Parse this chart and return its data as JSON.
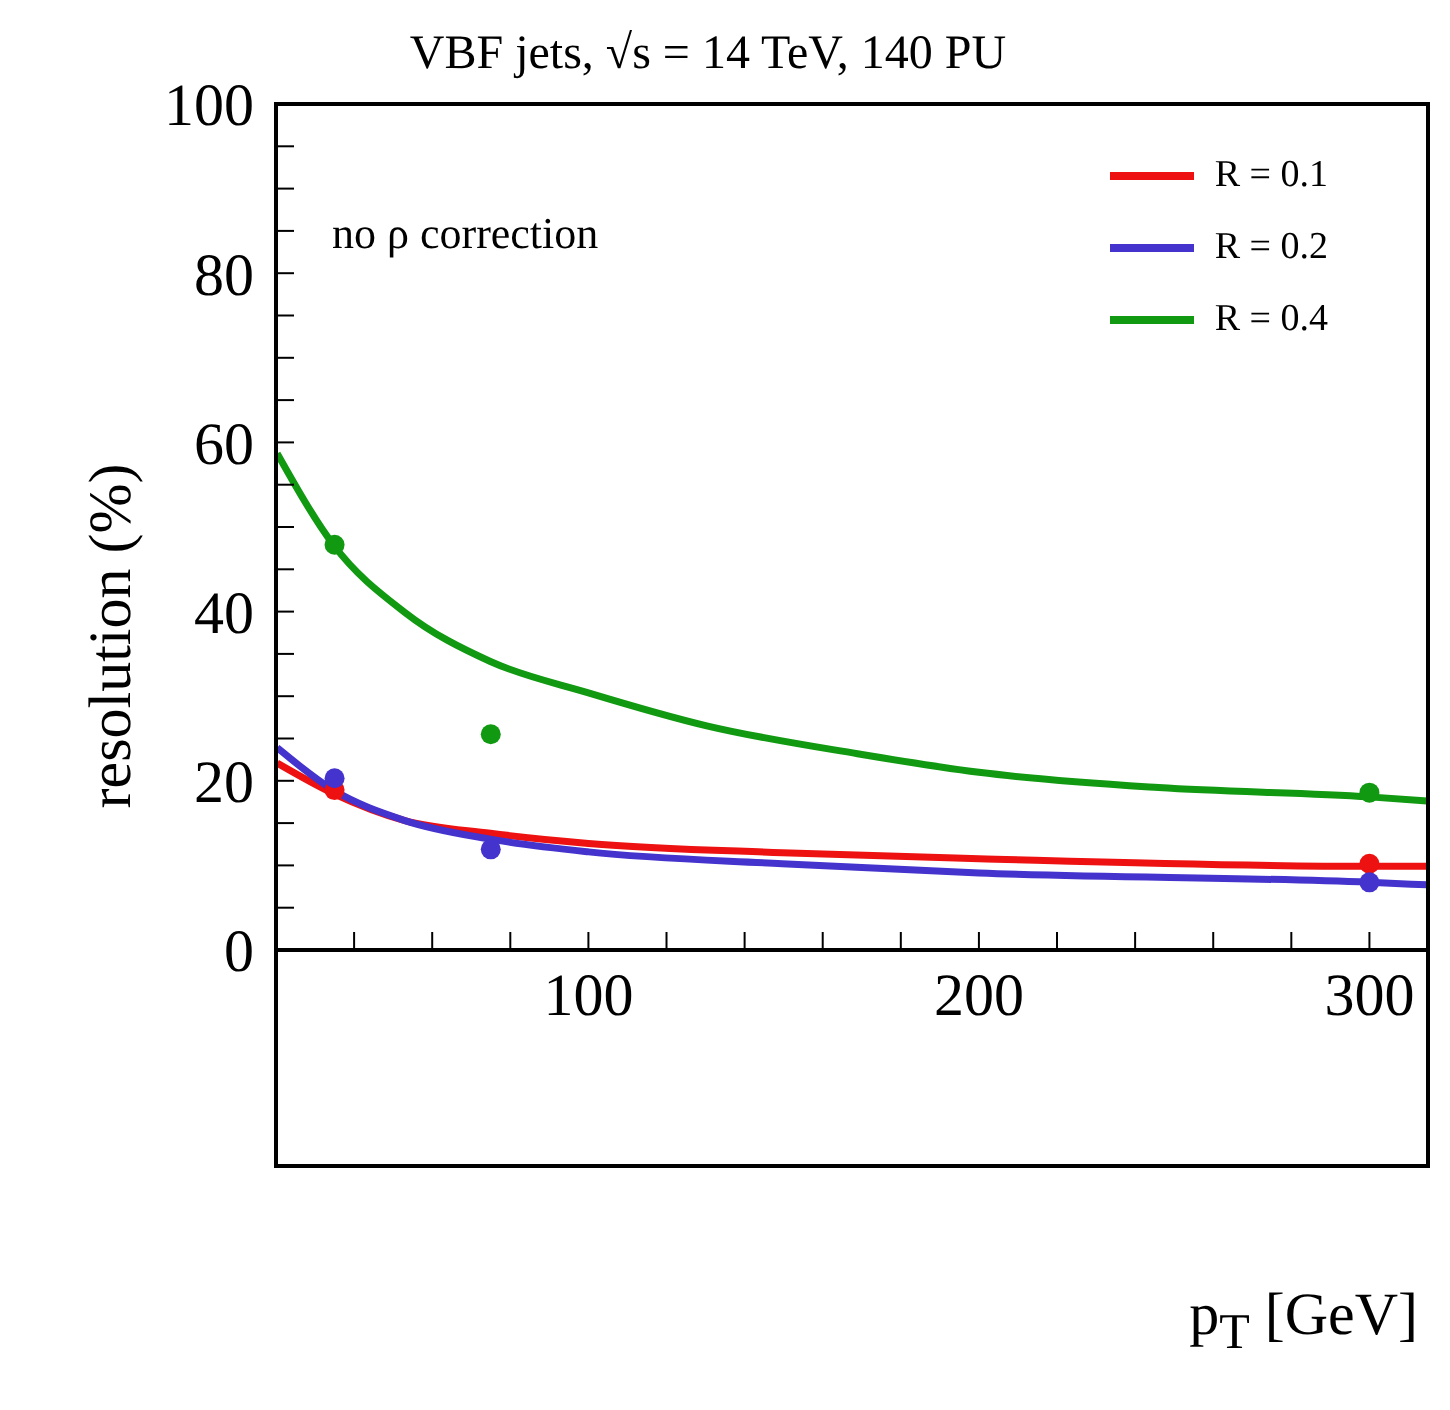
{
  "chart_data": {
    "type": "line",
    "title": "VBF jets, √s = 14 TeV, 140 PU",
    "xlabel": "p$_{T}$ [GeV]",
    "ylabel": "resolution (%)",
    "annotations": [
      "no ρ correction"
    ],
    "xlim": [
      20,
      315
    ],
    "xticks": [
      {
        "value": 20,
        "label": null
      },
      {
        "value": 40,
        "label": null
      },
      {
        "value": 60,
        "label": null
      },
      {
        "value": 80,
        "label": null
      },
      100,
      {
        "value": 120,
        "label": null
      },
      {
        "value": 140,
        "label": null
      },
      {
        "value": 160,
        "label": null
      },
      {
        "value": 180,
        "label": null
      },
      200,
      {
        "value": 220,
        "label": null
      },
      {
        "value": 240,
        "label": null
      },
      {
        "value": 260,
        "label": null
      },
      {
        "value": 280,
        "label": null
      },
      300
    ],
    "ylim": [
      0,
      100
    ],
    "yticks": [
      0,
      {
        "value": 5,
        "label": null
      },
      {
        "value": 10,
        "label": null
      },
      {
        "value": 15,
        "label": null
      },
      20,
      {
        "value": 25,
        "label": null
      },
      {
        "value": 30,
        "label": null
      },
      {
        "value": 35,
        "label": null
      },
      40,
      {
        "value": 45,
        "label": null
      },
      {
        "value": 50,
        "label": null
      },
      {
        "value": 55,
        "label": null
      },
      60,
      {
        "value": 65,
        "label": null
      },
      {
        "value": 70,
        "label": null
      },
      {
        "value": 75,
        "label": null
      },
      80,
      {
        "value": 85,
        "label": null
      },
      {
        "value": 90,
        "label": null
      },
      {
        "value": 95,
        "label": null
      },
      100
    ],
    "grid": false,
    "legend": "top right",
    "line_style": "solid",
    "series": [
      {
        "name": "R = 0.1",
        "color": "#ee1111",
        "marker": "none",
        "x": [
          20.3,
          34.7,
          53,
          74.9,
          100,
          149.6,
          200,
          300,
          314.7
        ],
        "values": [
          22.1,
          18.5,
          15.3,
          13.8,
          12.6,
          11.5,
          10.8,
          9.9,
          9.9
        ]
      },
      {
        "name": "R = 0.2",
        "color": "#4433cc",
        "marker": "none",
        "x": [
          20.3,
          34.7,
          53,
          74.9,
          100,
          149.6,
          200,
          300,
          314.7
        ],
        "values": [
          23.9,
          18.9,
          15.3,
          13.1,
          11.6,
          10.2,
          9.1,
          8.0,
          7.7
        ]
      },
      {
        "name": "R = 0.4",
        "color": "#119911",
        "marker": "none",
        "x": [
          20.3,
          34.7,
          53,
          74.9,
          100,
          130.3,
          168.9,
          200,
          246,
          300,
          314.7
        ],
        "values": [
          58.7,
          47.9,
          39.9,
          34.1,
          30.4,
          26.5,
          23.2,
          21.0,
          19.2,
          18.1,
          17.6
        ]
      },
      {
        "type": "scatter",
        "color": "#ee1111",
        "marker": "circle",
        "x": [
          35,
          75,
          300
        ],
        "values": [
          18.9,
          null,
          10.2
        ]
      },
      {
        "type": "scatter",
        "color": "#4433cc",
        "marker": "circle",
        "x": [
          35,
          75,
          300
        ],
        "values": [
          20.3,
          11.9,
          8.0
        ]
      },
      {
        "type": "scatter",
        "color": "#119911",
        "marker": "circle",
        "x": [
          35,
          75,
          300
        ],
        "values": [
          47.9,
          25.5,
          18.6
        ]
      }
    ]
  }
}
